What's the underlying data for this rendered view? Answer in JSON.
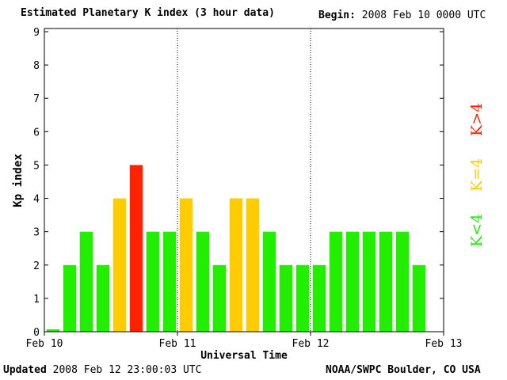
{
  "header": {
    "title": "Estimated Planetary K index (3 hour data)",
    "begin_label": "Begin:",
    "begin_value": "2008 Feb 10 0000 UTC"
  },
  "footer": {
    "updated_label": "Updated",
    "updated_value": "2008 Feb 12 23:00:03 UTC",
    "source": "NOAA/SWPC Boulder, CO USA"
  },
  "legend": {
    "high": "K>4",
    "mid": "K=4",
    "low": "K<4"
  },
  "colors": {
    "low": "#22ee00",
    "mid": "#ffcc00",
    "high": "#ff2200",
    "tiny": "#22ee00"
  },
  "chart_data": {
    "type": "bar",
    "title": "Estimated Planetary K index (3 hour data)",
    "xlabel": "Universal Time",
    "ylabel": "Kp index",
    "ylim": [
      0,
      9
    ],
    "yticks": [
      0,
      1,
      2,
      3,
      4,
      5,
      6,
      7,
      8,
      9
    ],
    "xticks": [
      "Feb 10",
      "Feb 11",
      "Feb 12",
      "Feb 13"
    ],
    "interval_hours": 3,
    "values": [
      0,
      2,
      3,
      2,
      4,
      5,
      3,
      3,
      4,
      3,
      2,
      4,
      4,
      3,
      2,
      2,
      2,
      3,
      3,
      3,
      3,
      3,
      2
    ],
    "color_rule": {
      "low": "K<4",
      "mid": "K=4",
      "high": "K>4"
    },
    "grid": false,
    "day_separators": "dotted"
  }
}
